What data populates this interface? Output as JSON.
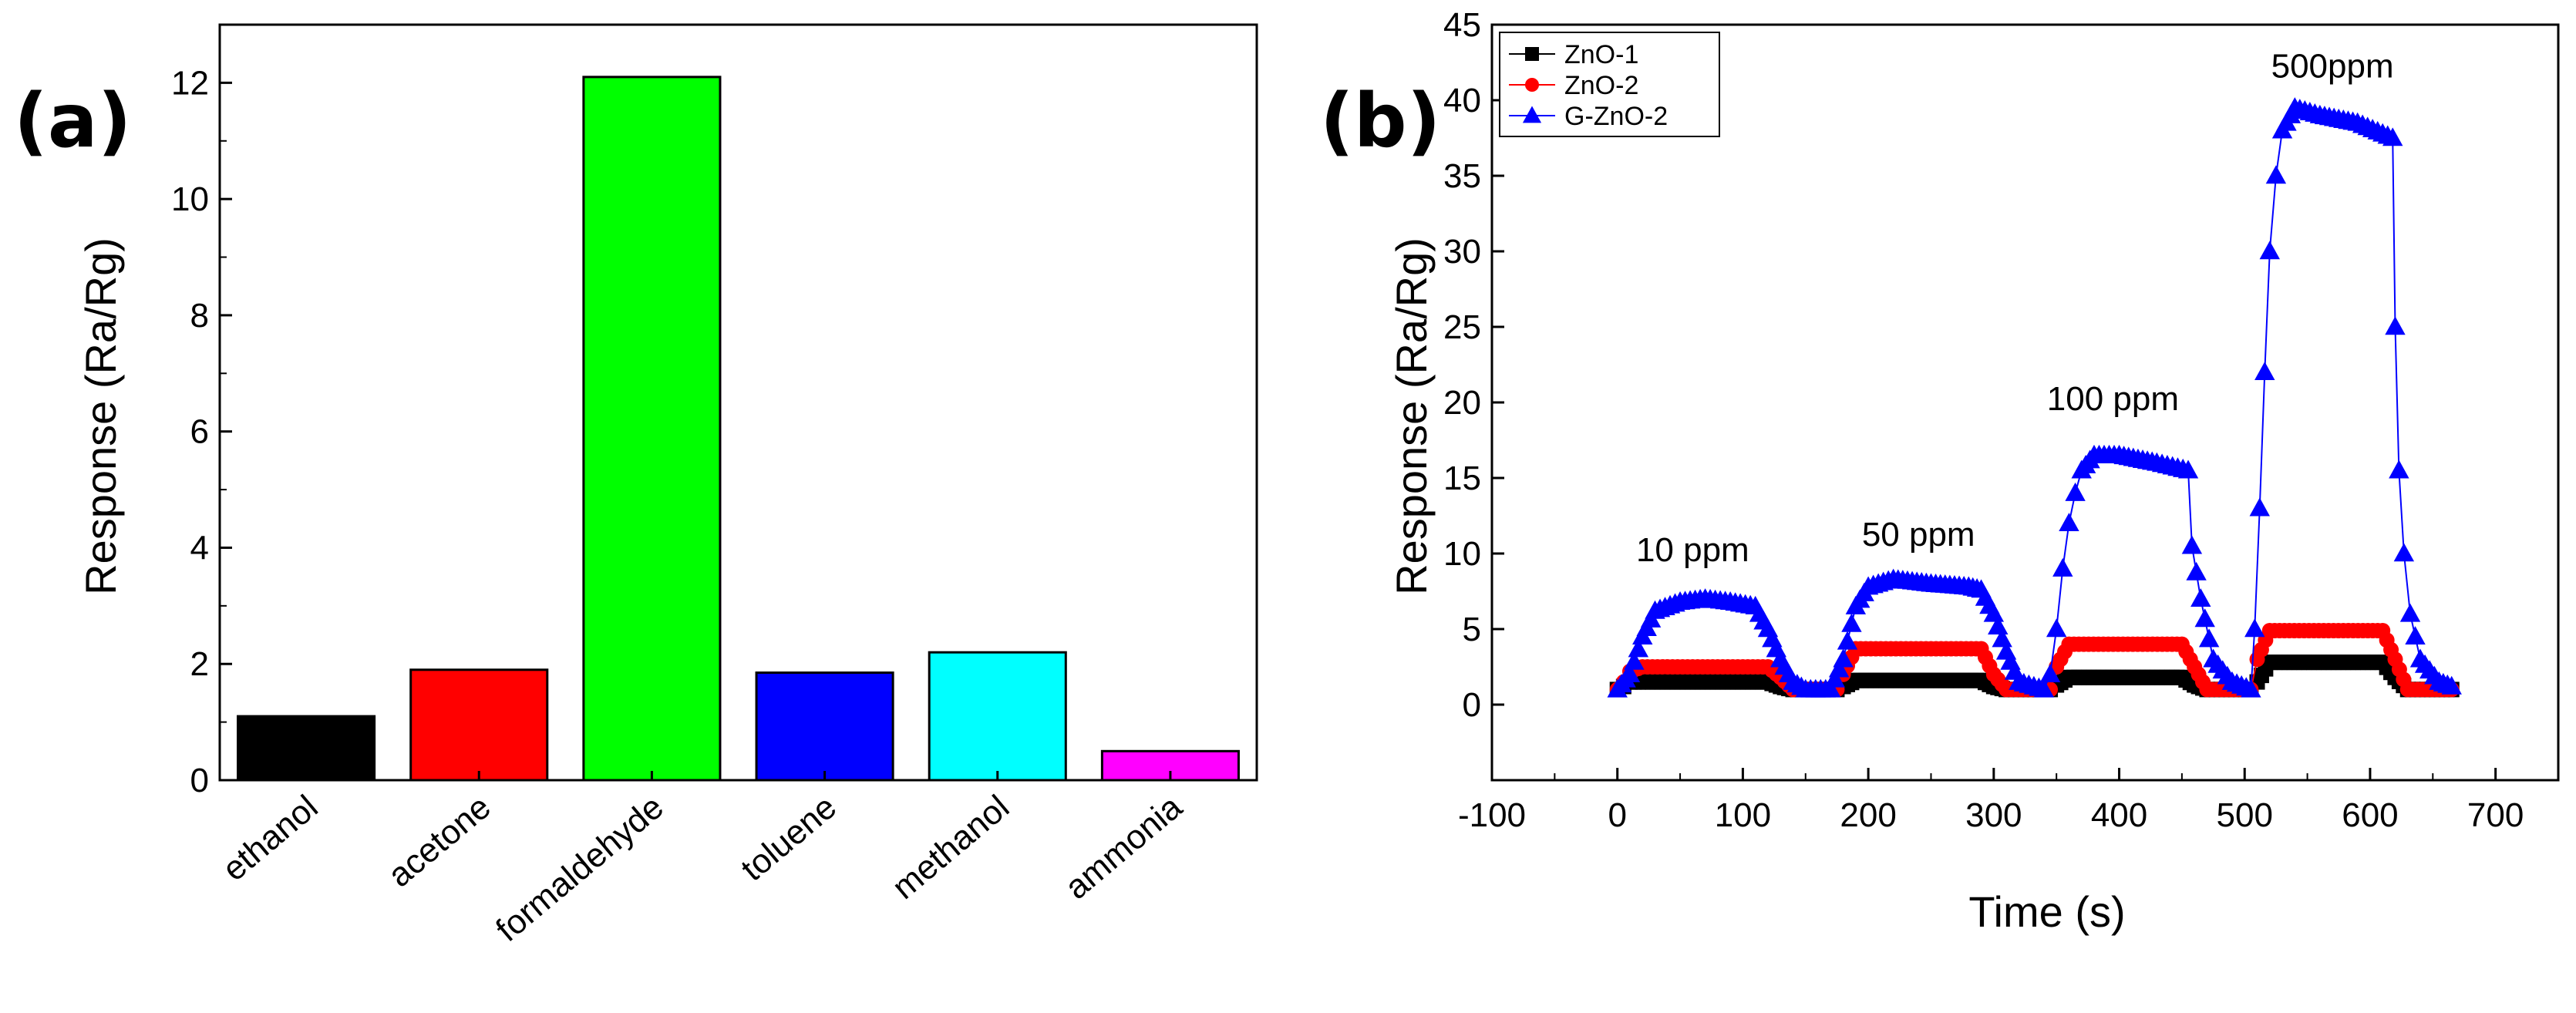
{
  "chart_data": [
    {
      "panel": "(a)",
      "type": "bar",
      "title": "",
      "xlabel": "",
      "ylabel": "Response (Ra/Rg)",
      "ylim": [
        0,
        13
      ],
      "yticks": [
        0,
        2,
        4,
        6,
        8,
        10,
        12
      ],
      "categories": [
        "ethanol",
        "acetone",
        "formaldehyde",
        "toluene",
        "methanol",
        "ammonia"
      ],
      "values": [
        1.1,
        1.9,
        12.1,
        1.85,
        2.2,
        0.5
      ],
      "colors": [
        "#000000",
        "#ff0000",
        "#00ff00",
        "#0000ff",
        "#00ffff",
        "#ff00ff"
      ],
      "grid": false
    },
    {
      "panel": "(b)",
      "type": "line",
      "title": "",
      "xlabel": "Time (s)",
      "ylabel": "Response (Ra/Rg)",
      "xlim": [
        -100,
        750
      ],
      "ylim": [
        -5,
        45
      ],
      "xticks": [
        -100,
        0,
        100,
        200,
        300,
        400,
        500,
        600,
        700
      ],
      "yticks": [
        0,
        5,
        10,
        15,
        20,
        25,
        30,
        35,
        40,
        45
      ],
      "legend_position": "top-left",
      "grid": false,
      "series": [
        {
          "name": "ZnO-1",
          "color": "#000000",
          "marker": "square",
          "x": [
            0,
            5,
            10,
            20,
            120,
            130,
            140,
            175,
            180,
            190,
            290,
            300,
            310,
            345,
            350,
            360,
            450,
            460,
            470,
            505,
            510,
            520,
            610,
            620,
            630,
            665
          ],
          "y": [
            1.0,
            1.2,
            1.5,
            1.5,
            1.5,
            1.2,
            1.0,
            1.0,
            1.2,
            1.6,
            1.6,
            1.2,
            1.0,
            1.0,
            1.3,
            1.8,
            1.8,
            1.3,
            1.0,
            1.0,
            1.5,
            2.8,
            2.8,
            1.8,
            1.0,
            1.0
          ]
        },
        {
          "name": "ZnO-2",
          "color": "#ff0000",
          "marker": "circle",
          "x": [
            0,
            5,
            10,
            20,
            120,
            130,
            140,
            175,
            180,
            190,
            290,
            300,
            310,
            345,
            350,
            360,
            450,
            460,
            470,
            505,
            510,
            520,
            610,
            620,
            630,
            665
          ],
          "y": [
            1.0,
            1.5,
            2.2,
            2.5,
            2.5,
            1.8,
            1.0,
            1.0,
            2.0,
            3.7,
            3.7,
            2.0,
            1.0,
            1.0,
            2.5,
            4.0,
            4.0,
            2.5,
            1.0,
            1.0,
            3.0,
            4.9,
            4.9,
            3.0,
            1.0,
            1.0
          ]
        },
        {
          "name": "G-ZnO-2",
          "color": "#0000ff",
          "marker": "triangle",
          "x": [
            0,
            10,
            20,
            30,
            50,
            70,
            90,
            110,
            120,
            130,
            140,
            150,
            170,
            180,
            190,
            200,
            220,
            250,
            280,
            290,
            300,
            310,
            320,
            340,
            345,
            350,
            355,
            360,
            365,
            370,
            380,
            400,
            430,
            455,
            458,
            465,
            475,
            490,
            505,
            508,
            512,
            516,
            520,
            525,
            530,
            540,
            560,
            590,
            618,
            620,
            623,
            627,
            632,
            640,
            655,
            665
          ],
          "y": [
            1.0,
            2.0,
            4.5,
            6.2,
            6.8,
            7.0,
            6.8,
            6.5,
            5.0,
            3.0,
            1.5,
            1.0,
            1.0,
            3.0,
            6.5,
            7.8,
            8.3,
            8.0,
            7.8,
            7.6,
            6.0,
            3.5,
            1.5,
            1.0,
            2.0,
            5.0,
            9.0,
            12.0,
            14.0,
            15.5,
            16.5,
            16.5,
            16.0,
            15.5,
            10.5,
            7.0,
            3.0,
            1.5,
            1.0,
            5.0,
            13.0,
            22.0,
            30.0,
            35.0,
            38.0,
            39.5,
            39.0,
            38.5,
            37.5,
            25.0,
            15.5,
            10.0,
            6.0,
            3.0,
            1.5,
            1.2
          ]
        }
      ],
      "annotations": [
        {
          "text": "10 ppm",
          "x": 60,
          "y": 9.5
        },
        {
          "text": "50 ppm",
          "x": 240,
          "y": 10.5
        },
        {
          "text": "100 ppm",
          "x": 395,
          "y": 19.5
        },
        {
          "text": "500ppm",
          "x": 570,
          "y": 41.5
        }
      ]
    }
  ]
}
